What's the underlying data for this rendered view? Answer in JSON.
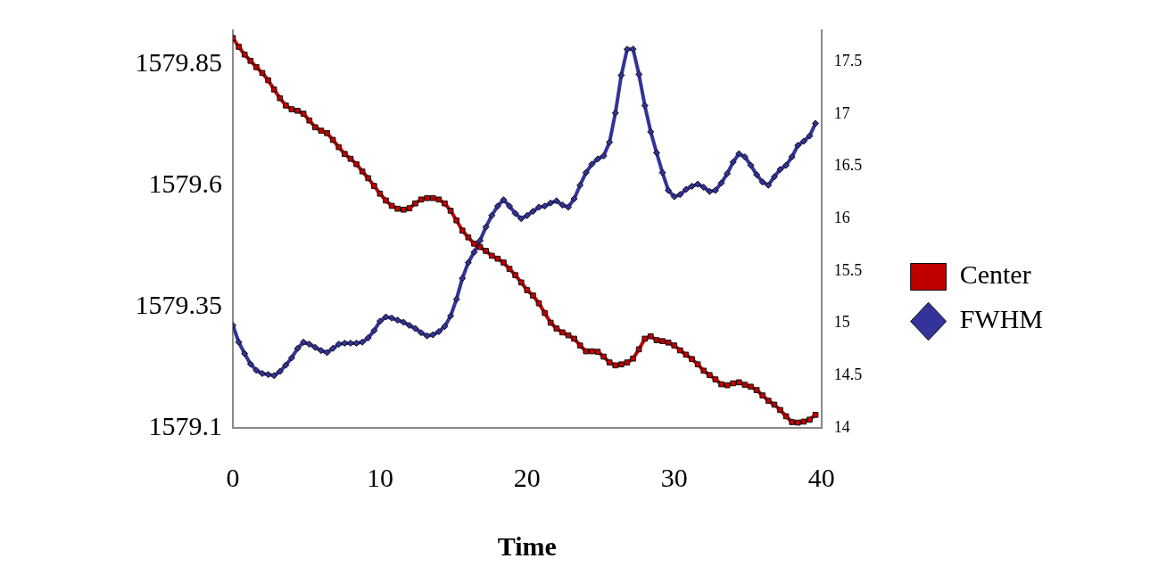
{
  "chart_data": {
    "type": "line",
    "xlabel": "Time",
    "x": [
      0,
      0.4,
      0.8,
      1.2,
      1.6,
      2,
      2.4,
      2.8,
      3.2,
      3.6,
      4,
      4.4,
      4.8,
      5.2,
      5.6,
      6,
      6.4,
      6.8,
      7.2,
      7.6,
      8,
      8.4,
      8.8,
      9.2,
      9.6,
      10,
      10.4,
      10.8,
      11.2,
      11.6,
      12,
      12.4,
      12.8,
      13.2,
      13.6,
      14,
      14.4,
      14.8,
      15.2,
      15.6,
      16,
      16.4,
      16.8,
      17.2,
      17.6,
      18,
      18.4,
      18.8,
      19.2,
      19.6,
      20,
      20.4,
      20.8,
      21.2,
      21.6,
      22,
      22.4,
      22.8,
      23.2,
      23.6,
      24,
      24.4,
      24.8,
      25.2,
      25.6,
      26,
      26.4,
      26.8,
      27.2,
      27.6,
      28,
      28.4,
      28.8,
      29.2,
      29.6,
      30,
      30.4,
      30.8,
      31.2,
      31.6,
      32,
      32.4,
      32.8,
      33.2,
      33.6,
      34,
      34.4,
      34.8,
      35.2,
      35.6,
      36,
      36.4,
      36.8,
      37.2,
      37.6,
      38,
      38.4,
      38.8,
      39.2,
      39.6
    ],
    "series": [
      {
        "name": "Center",
        "color": "#c00000",
        "marker": "square",
        "values": [
          1579.904,
          1579.886,
          1579.87,
          1579.857,
          1579.844,
          1579.832,
          1579.817,
          1579.798,
          1579.78,
          1579.765,
          1579.757,
          1579.754,
          1579.748,
          1579.734,
          1579.72,
          1579.713,
          1579.708,
          1579.694,
          1579.679,
          1579.665,
          1579.655,
          1579.644,
          1579.629,
          1579.615,
          1579.599,
          1579.583,
          1579.569,
          1579.558,
          1579.552,
          1579.55,
          1579.553,
          1579.563,
          1579.571,
          1579.574,
          1579.574,
          1579.571,
          1579.563,
          1579.548,
          1579.528,
          1579.507,
          1579.493,
          1579.48,
          1579.473,
          1579.465,
          1579.455,
          1579.449,
          1579.441,
          1579.428,
          1579.415,
          1579.4,
          1579.384,
          1579.373,
          1579.357,
          1579.337,
          1579.317,
          1579.305,
          1579.297,
          1579.291,
          1579.284,
          1579.27,
          1579.258,
          1579.258,
          1579.257,
          1579.247,
          1579.235,
          1579.229,
          1579.231,
          1579.235,
          1579.243,
          1579.262,
          1579.284,
          1579.289,
          1579.281,
          1579.279,
          1579.276,
          1579.27,
          1579.26,
          1579.251,
          1579.242,
          1579.231,
          1579.218,
          1579.209,
          1579.2,
          1579.19,
          1579.188,
          1579.192,
          1579.194,
          1579.189,
          1579.185,
          1579.178,
          1579.167,
          1579.156,
          1579.148,
          1579.137,
          1579.124,
          1579.112,
          1579.111,
          1579.113,
          1579.117,
          1579.127
        ]
      },
      {
        "name": "FWHM",
        "color": "#333399",
        "marker": "diamond",
        "axis": "y2",
        "values": [
          14.98,
          14.82,
          14.71,
          14.61,
          14.55,
          14.52,
          14.51,
          14.5,
          14.54,
          14.6,
          14.67,
          14.76,
          14.82,
          14.8,
          14.77,
          14.74,
          14.72,
          14.76,
          14.8,
          14.81,
          14.81,
          14.81,
          14.82,
          14.86,
          14.93,
          15.02,
          15.06,
          15.05,
          15.03,
          15.01,
          14.98,
          14.95,
          14.91,
          14.88,
          14.89,
          14.92,
          14.97,
          15.07,
          15.23,
          15.43,
          15.58,
          15.68,
          15.79,
          15.92,
          16.03,
          16.12,
          16.18,
          16.12,
          16.05,
          16.0,
          16.03,
          16.07,
          16.11,
          16.12,
          16.15,
          16.17,
          16.13,
          16.11,
          16.19,
          16.32,
          16.44,
          16.52,
          16.57,
          16.6,
          16.73,
          17.01,
          17.37,
          17.62,
          17.62,
          17.38,
          17.08,
          16.83,
          16.63,
          16.44,
          16.27,
          16.21,
          16.23,
          16.28,
          16.31,
          16.33,
          16.3,
          16.26,
          16.27,
          16.34,
          16.43,
          16.54,
          16.62,
          16.59,
          16.51,
          16.42,
          16.35,
          16.32,
          16.4,
          16.47,
          16.51,
          16.59,
          16.7,
          16.74,
          16.79,
          16.91
        ]
      }
    ],
    "xlim": [
      0,
      40
    ],
    "xticks": [
      0,
      10,
      20,
      30,
      40
    ],
    "ylim": [
      1579.1,
      1579.92
    ],
    "yticks": [
      1579.1,
      1579.35,
      1579.6,
      1579.85
    ],
    "y2lim": [
      14,
      17.8
    ],
    "y2ticks": [
      14,
      14.5,
      15,
      15.5,
      16,
      16.5,
      17,
      17.5
    ],
    "grid": false,
    "legend": "right",
    "line_style": "solid"
  }
}
